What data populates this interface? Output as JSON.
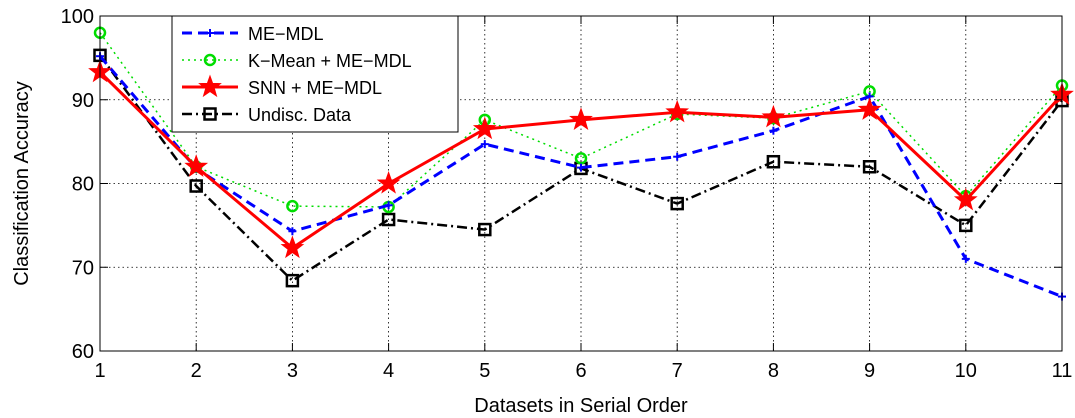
{
  "chart_data": {
    "type": "line",
    "title": "",
    "xlabel": "Datasets in Serial Order",
    "ylabel": "Classification Accuracy",
    "xlim": [
      1,
      11
    ],
    "ylim": [
      60,
      100
    ],
    "x": [
      1,
      2,
      3,
      4,
      5,
      6,
      7,
      8,
      9,
      10,
      11
    ],
    "xticks": [
      "1",
      "2",
      "3",
      "4",
      "5",
      "6",
      "7",
      "8",
      "9",
      "10",
      "11"
    ],
    "yticks": [
      "60",
      "70",
      "80",
      "90",
      "100"
    ],
    "grid": true,
    "legend_position": "top-left",
    "series": [
      {
        "name": "ME−MDL",
        "values": [
          95.2,
          81.8,
          74.3,
          77.4,
          84.7,
          81.9,
          83.2,
          86.3,
          90.4,
          71.0,
          66.5
        ],
        "color": "#0000ff",
        "dash": "dashed",
        "marker": "plus"
      },
      {
        "name": "K−Mean + ME−MDL",
        "values": [
          98.0,
          82.0,
          77.3,
          77.2,
          87.6,
          83.0,
          88.3,
          87.8,
          91.0,
          78.5,
          91.7
        ],
        "color": "#00dd00",
        "dash": "dotted",
        "marker": "circle"
      },
      {
        "name": "SNN + ME−MDL",
        "values": [
          93.3,
          82.0,
          72.3,
          80.0,
          86.5,
          87.6,
          88.5,
          87.9,
          88.8,
          78.0,
          90.6
        ],
        "color": "#ff0000",
        "dash": "solid",
        "marker": "star"
      },
      {
        "name": "Undisc. Data",
        "values": [
          95.3,
          79.7,
          68.4,
          75.7,
          74.5,
          81.8,
          77.6,
          82.6,
          82.0,
          75.0,
          89.9
        ],
        "color": "#000000",
        "dash": "dashdot",
        "marker": "square"
      }
    ]
  }
}
